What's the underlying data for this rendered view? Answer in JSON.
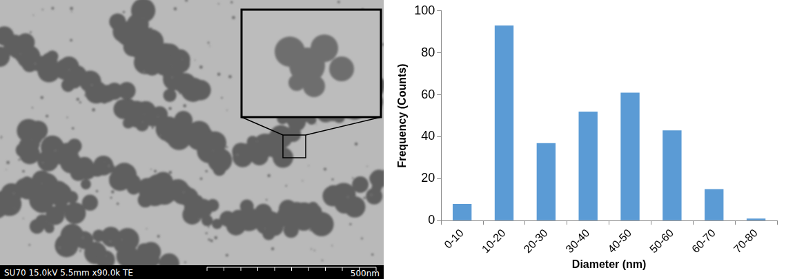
{
  "chart_data": {
    "type": "bar",
    "categories": [
      "0-10",
      "10-20",
      "20-30",
      "30-40",
      "40-50",
      "50-60",
      "60-70",
      "70-80"
    ],
    "values": [
      8,
      93,
      37,
      52,
      61,
      43,
      15,
      1
    ],
    "color": "#5b9bd5",
    "xlabel": "Diameter (nm)",
    "ylabel": "Frequency (Counts)",
    "ylim": [
      0,
      100
    ],
    "yticks": [
      0,
      20,
      40,
      60,
      80,
      100
    ],
    "grid": false
  },
  "micrograph": {
    "caption": "SU70 15.0kV 5.5mm x90.0k TE",
    "scale_bar": "500nm"
  }
}
